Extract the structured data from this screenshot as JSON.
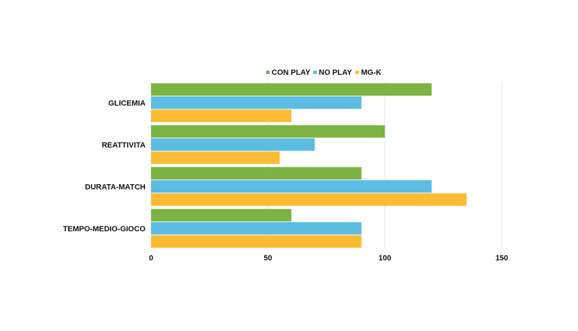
{
  "chart_data": {
    "type": "bar",
    "orientation": "horizontal",
    "categories": [
      "GLICEMIA",
      "REATTIVITA",
      "DURATA-MATCH",
      "TEMPO-MEDIO-GIOCO"
    ],
    "series": [
      {
        "name": "CON PLAY",
        "color": "#7cb342",
        "values": [
          120,
          100,
          90,
          60
        ]
      },
      {
        "name": "NO PLAY",
        "color": "#5bbce4",
        "values": [
          90,
          70,
          120,
          90
        ]
      },
      {
        "name": "MG-K",
        "color": "#fbbc33",
        "values": [
          60,
          55,
          135,
          90
        ]
      }
    ],
    "xlim": [
      0,
      150
    ],
    "xticks": [
      "0",
      "50",
      "100",
      "150"
    ],
    "grid": true,
    "legend": "top-center"
  }
}
